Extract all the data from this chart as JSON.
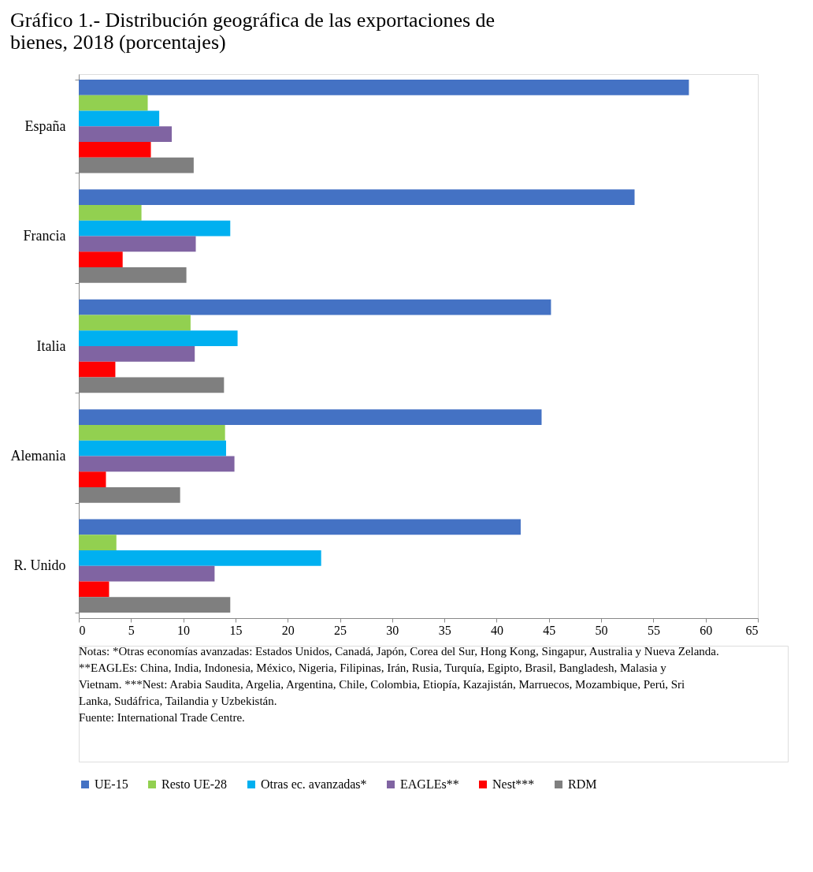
{
  "chart_data": {
    "type": "bar",
    "orientation": "horizontal",
    "title": "Gráfico 1.- Distribución geográfica de las exportaciones de bienes, 2018 (porcentajes)",
    "categories": [
      "España",
      "Francia",
      "Italia",
      "Alemania",
      "R. Unido"
    ],
    "series": [
      {
        "name": "UE-15",
        "color": "#4472c4",
        "values": [
          58.4,
          53.2,
          45.2,
          44.3,
          42.3
        ]
      },
      {
        "name": "Resto UE-28",
        "color": "#92d050",
        "values": [
          6.6,
          6.0,
          10.7,
          14.0,
          3.6
        ]
      },
      {
        "name": "Otras ec. avanzadas*",
        "color": "#00b0f0",
        "values": [
          7.7,
          14.5,
          15.2,
          14.1,
          23.2
        ]
      },
      {
        "name": "EAGLEs**",
        "color": "#8064a2",
        "values": [
          8.9,
          11.2,
          11.1,
          14.9,
          13.0
        ]
      },
      {
        "name": "Nest***",
        "color": "#ff0000",
        "values": [
          6.9,
          4.2,
          3.5,
          2.6,
          2.9
        ]
      },
      {
        "name": "RDM",
        "color": "#7f7f7f",
        "values": [
          11.0,
          10.3,
          13.9,
          9.7,
          14.5
        ]
      }
    ],
    "xlim": [
      0,
      65
    ],
    "xticks": [
      0,
      5,
      10,
      15,
      20,
      25,
      30,
      35,
      40,
      45,
      50,
      55,
      60,
      65
    ],
    "grid": false,
    "legend": "bottom",
    "annotations": [
      "Notas: *Otras economías avanzadas: Estados Unidos, Canadá, Japón, Corea del Sur, Hong Kong, Singapur, Australia y Nueva Zelanda. **EAGLEs: China, India, Indonesia, México, Nigeria, Filipinas, Irán, Rusia, Turquía, Egipto, Brasil, Bangladesh, Malasia y Vietnam. ***Nest: Arabia Saudita, Argelia, Argentina, Chile, Colombia, Etiopía, Kazajistán, Marruecos, Mozambique, Perú, Sri Lanka, Sudáfrica, Tailandia y Uzbekistán.",
      "Fuente: International Trade Centre."
    ]
  }
}
